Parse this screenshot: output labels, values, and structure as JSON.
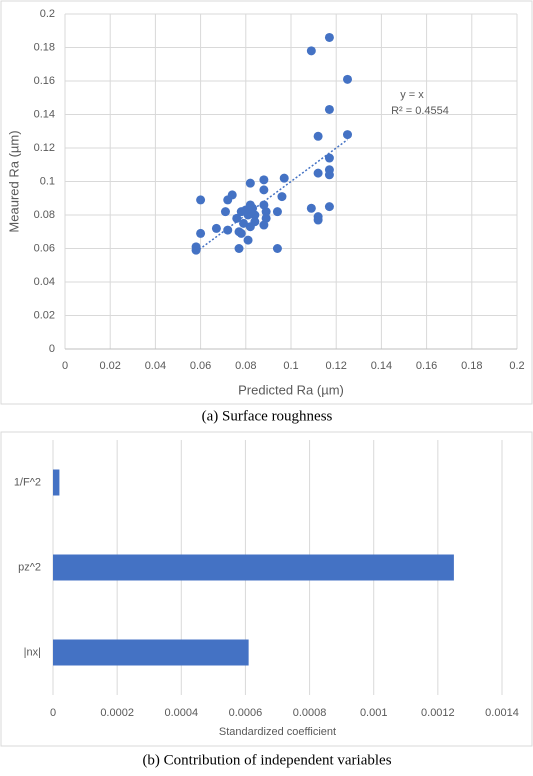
{
  "chart_data": [
    {
      "type": "scatter",
      "caption": "(a)  Surface roughness",
      "x_label": "Predicted Ra (µm)",
      "y_label": "Meaured Ra (µm)",
      "annotations": [
        "y = x",
        "R² = 0.4554"
      ],
      "color": "#4472c4",
      "grid": true,
      "xlim": [
        0,
        0.2
      ],
      "ylim": [
        0,
        0.2
      ],
      "xticks": [
        0,
        0.02,
        0.04,
        0.06,
        0.08,
        0.1,
        0.12,
        0.14,
        0.16,
        0.18,
        0.2
      ],
      "yticks": [
        0,
        0.02,
        0.04,
        0.06,
        0.08,
        0.1,
        0.12,
        0.14,
        0.16,
        0.18,
        0.2
      ],
      "trendline": {
        "x": [
          0.058,
          0.125
        ],
        "y": [
          0.058,
          0.125
        ]
      },
      "x": [
        0.117,
        0.109,
        0.125,
        0.117,
        0.125,
        0.112,
        0.117,
        0.117,
        0.117,
        0.112,
        0.097,
        0.117,
        0.109,
        0.112,
        0.112,
        0.096,
        0.088,
        0.082,
        0.074,
        0.072,
        0.088,
        0.06,
        0.06,
        0.058,
        0.058,
        0.067,
        0.071,
        0.072,
        0.077,
        0.081,
        0.094,
        0.094,
        0.088,
        0.089,
        0.089,
        0.088,
        0.084,
        0.084,
        0.082,
        0.08,
        0.078,
        0.076,
        0.079,
        0.082,
        0.078,
        0.077,
        0.081,
        0.083
      ],
      "y": [
        0.186,
        0.178,
        0.161,
        0.143,
        0.128,
        0.127,
        0.114,
        0.107,
        0.104,
        0.105,
        0.102,
        0.085,
        0.084,
        0.079,
        0.077,
        0.091,
        0.101,
        0.099,
        0.092,
        0.089,
        0.095,
        0.089,
        0.069,
        0.061,
        0.059,
        0.072,
        0.082,
        0.071,
        0.06,
        0.065,
        0.06,
        0.082,
        0.086,
        0.082,
        0.078,
        0.074,
        0.08,
        0.076,
        0.086,
        0.083,
        0.082,
        0.078,
        0.075,
        0.073,
        0.069,
        0.07,
        0.08,
        0.084
      ]
    },
    {
      "type": "bar",
      "orientation": "horizontal",
      "caption": "(b)  Contribution of independent variables",
      "x_label": "Standardized coefficient",
      "color": "#4472c4",
      "grid": true,
      "categories": [
        "1/F^2",
        "pz^2",
        "|nx|"
      ],
      "values": [
        2e-05,
        0.00125,
        0.00061
      ],
      "xlim": [
        0,
        0.0014
      ],
      "xticks": [
        0,
        0.0002,
        0.0004,
        0.0006,
        0.0008,
        0.001,
        0.0012,
        0.0014
      ]
    }
  ]
}
